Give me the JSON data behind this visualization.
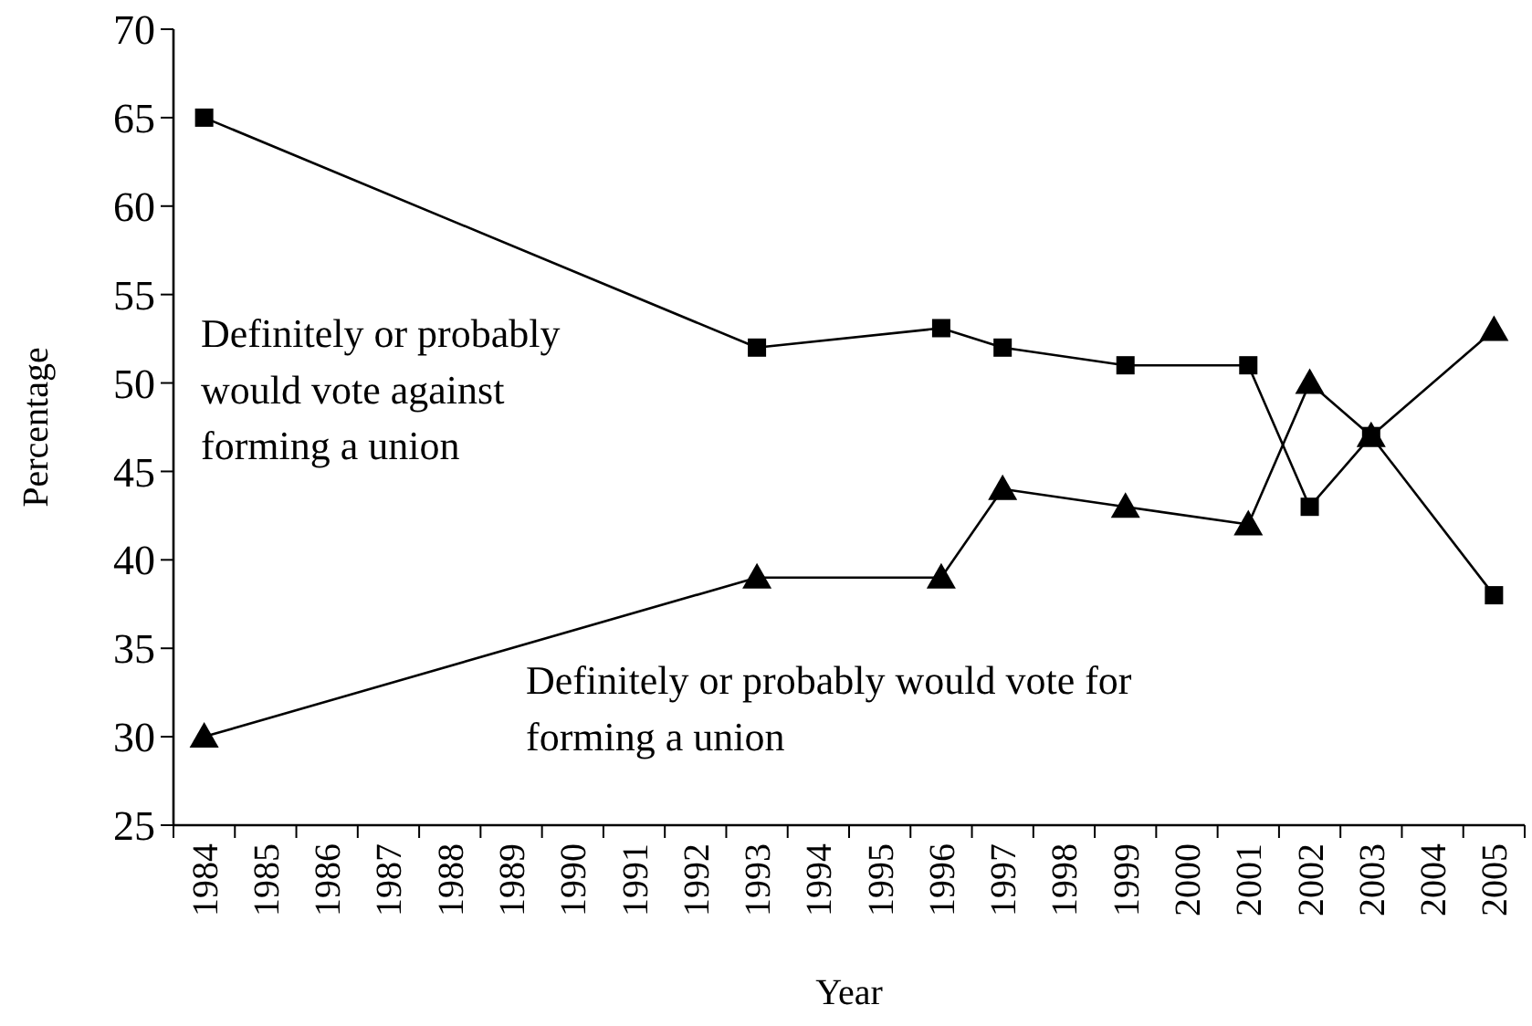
{
  "chart_data": {
    "type": "line",
    "xlabel": "Year",
    "ylabel": "Percentage",
    "categories": [
      "1984",
      "1985",
      "1986",
      "1987",
      "1988",
      "1989",
      "1990",
      "1991",
      "1992",
      "1993",
      "1994",
      "1995",
      "1996",
      "1997",
      "1998",
      "1999",
      "2000",
      "2001",
      "2002",
      "2003",
      "2004",
      "2005"
    ],
    "ylim": [
      25,
      70
    ],
    "yticks": [
      25,
      30,
      35,
      40,
      45,
      50,
      55,
      60,
      65,
      70
    ],
    "grid": false,
    "series": [
      {
        "name": "Definitely or probably would vote against forming a union",
        "color": "#000000",
        "marker": "square",
        "values": [
          65,
          null,
          null,
          null,
          null,
          null,
          null,
          null,
          null,
          52,
          null,
          null,
          53.1,
          52,
          null,
          51,
          null,
          51,
          43,
          47,
          null,
          38
        ]
      },
      {
        "name": "Definitely or probably would vote for forming a union",
        "color": "#000000",
        "marker": "triangle",
        "values": [
          30,
          null,
          null,
          null,
          null,
          null,
          null,
          null,
          null,
          39,
          null,
          null,
          39,
          44,
          null,
          43,
          null,
          42,
          50,
          47,
          null,
          53
        ]
      }
    ]
  }
}
